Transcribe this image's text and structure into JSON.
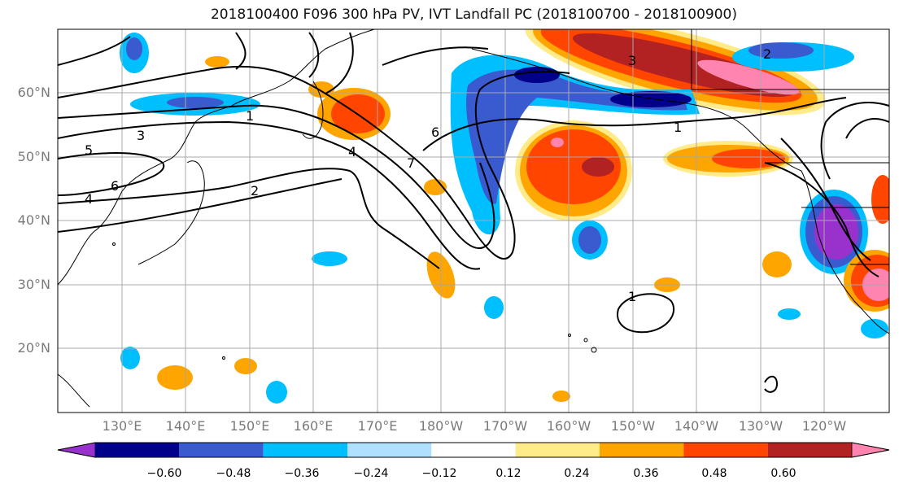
{
  "title": "2018100400 F096 300 hPa PV, IVT Landfall PC (2018100700 - 2018100900)",
  "map": {
    "projection": "cylindrical",
    "lon_range": [
      120,
      -112
    ],
    "lat_range": [
      10,
      70
    ],
    "lat_gridlines": [
      {
        "lat": 60,
        "label": "60°N"
      },
      {
        "lat": 50,
        "label": "50°N"
      },
      {
        "lat": 40,
        "label": "40°N"
      },
      {
        "lat": 30,
        "label": "30°N"
      },
      {
        "lat": 20,
        "label": "20°N"
      }
    ],
    "lon_gridlines": [
      {
        "lon": 130,
        "label": "130°E"
      },
      {
        "lon": 140,
        "label": "140°E"
      },
      {
        "lon": 150,
        "label": "150°E"
      },
      {
        "lon": 160,
        "label": "160°E"
      },
      {
        "lon": 170,
        "label": "170°E"
      },
      {
        "lon": 180,
        "label": "180°W"
      },
      {
        "lon": -170,
        "label": "170°W"
      },
      {
        "lon": -160,
        "label": "160°W"
      },
      {
        "lon": -150,
        "label": "150°W"
      },
      {
        "lon": -140,
        "label": "140°W"
      },
      {
        "lon": -130,
        "label": "130°W"
      },
      {
        "lon": -120,
        "label": "120°W"
      }
    ],
    "contour_labels": [
      "1",
      "1",
      "1",
      "2",
      "2",
      "3",
      "3",
      "4",
      "4",
      "5",
      "6",
      "6",
      "7"
    ],
    "colors": {
      "purple": "#9932CC",
      "navy": "#00008B",
      "royal": "#3A5BD0",
      "sky": "#00BFFF",
      "pale": "#B0E0FF",
      "yellow": "#FFEB8A",
      "orange": "#FFA500",
      "redorange": "#FF4500",
      "darkred": "#B22222",
      "pink": "#FF85B0"
    }
  },
  "colorbar": {
    "ticks": [
      "−0.60",
      "−0.48",
      "−0.36",
      "−0.24",
      "−0.12",
      "0.12",
      "0.24",
      "0.36",
      "0.48",
      "0.60"
    ],
    "colors": [
      "#9932CC",
      "#00008B",
      "#3A5BD0",
      "#00BFFF",
      "#B0E0FF",
      "#FFFFFF",
      "#FFEB8A",
      "#FFA500",
      "#FF4500",
      "#B22222",
      "#FF85B0"
    ]
  }
}
